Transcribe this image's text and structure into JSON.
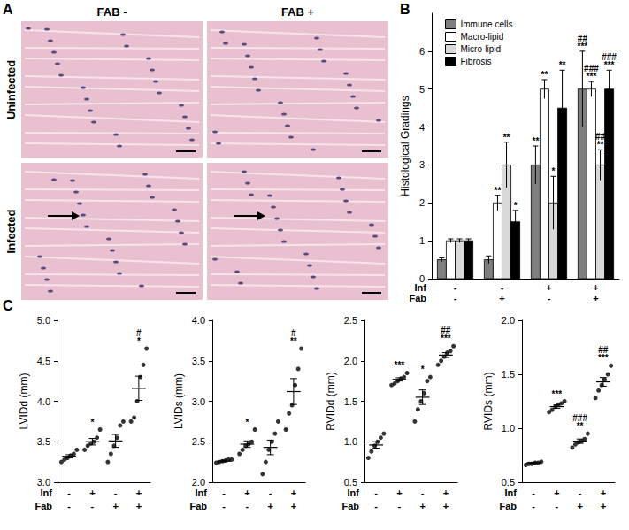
{
  "panel_labels": [
    "A",
    "B",
    "C"
  ],
  "histology": {
    "columns": [
      "FAB -",
      "FAB +"
    ],
    "rows": [
      "Uninfected",
      "Infected"
    ]
  },
  "chart_data": [
    {
      "type": "bar",
      "ylabel": "Histological Gradings",
      "categories": [
        "-\n-",
        "-\n+",
        "+\n-",
        "+\n+"
      ],
      "category_rows": [
        "Inf",
        "Fab"
      ],
      "ylim": [
        0,
        7
      ],
      "yticks": [
        0,
        1,
        2,
        3,
        4,
        5,
        6
      ],
      "legend": "upper left",
      "grid": false,
      "series": [
        {
          "name": "Immune cells",
          "color": "#7f7f7f",
          "values": [
            0.5,
            0.5,
            3,
            5
          ],
          "errors": [
            0.05,
            0.1,
            0.5,
            1.0
          ],
          "annotations": [
            null,
            null,
            "**",
            "##\n***"
          ]
        },
        {
          "name": "Macro-lipid",
          "color": "#ffffff",
          "values": [
            1,
            2,
            5,
            5
          ],
          "errors": [
            0.05,
            0.2,
            0.25,
            0.2
          ],
          "annotations": [
            null,
            "**",
            "**",
            "###\n***"
          ]
        },
        {
          "name": "Micro-lipid",
          "color": "#d9d9d9",
          "values": [
            1,
            3,
            2,
            3
          ],
          "errors": [
            0.05,
            0.6,
            0.7,
            0.4
          ],
          "annotations": [
            null,
            "**",
            "*",
            "##\n**"
          ]
        },
        {
          "name": "Fibrosis",
          "color": "#000000",
          "values": [
            1,
            1.5,
            4.5,
            5
          ],
          "errors": [
            0.05,
            0.3,
            1.0,
            0.5
          ],
          "annotations": [
            null,
            "*",
            "**",
            "###\n***"
          ]
        }
      ]
    },
    {
      "type": "scatter",
      "ylabel": "LVIDd (mm)",
      "categories": [
        "-\n-",
        "+\n-",
        "-\n+",
        "+\n+"
      ],
      "category_rows": [
        "Inf",
        "Fab"
      ],
      "ylim": [
        3,
        5
      ],
      "yticks": [
        {
          "value": 3,
          "label": "3.0"
        },
        3.5,
        {
          "value": 4,
          "label": "4.0"
        },
        4.5,
        {
          "value": 5,
          "label": "5.0"
        }
      ],
      "color": "#000000",
      "marker": "circle",
      "grid": false,
      "values": [
        [
          3.25,
          3.28,
          3.3,
          3.33,
          3.35,
          3.4
        ],
        [
          3.4,
          3.45,
          3.48,
          3.5,
          3.55,
          3.65
        ],
        [
          3.25,
          3.35,
          3.45,
          3.55,
          3.7,
          3.75
        ],
        [
          3.75,
          3.8,
          4.0,
          4.3,
          4.45,
          4.65
        ]
      ],
      "mean": [
        3.32,
        3.5,
        3.51,
        4.16
      ],
      "sem": [
        0.02,
        0.04,
        0.08,
        0.15
      ],
      "annotations": [
        null,
        "*",
        null,
        "#\n*"
      ]
    },
    {
      "type": "scatter",
      "ylabel": "LVIDs (mm)",
      "categories": [
        "-\n-",
        "+\n-",
        "-\n+",
        "+\n+"
      ],
      "category_rows": [
        "Inf",
        "Fab"
      ],
      "ylim": [
        2,
        4
      ],
      "yticks": [
        {
          "value": 2,
          "label": "2.0"
        },
        2.5,
        {
          "value": 3,
          "label": "3.0"
        },
        3.5,
        {
          "value": 4,
          "label": "4.0"
        }
      ],
      "color": "#000000",
      "marker": "circle",
      "grid": false,
      "values": [
        [
          2.24,
          2.25,
          2.26,
          2.27,
          2.28,
          2.28
        ],
        [
          2.35,
          2.4,
          2.45,
          2.47,
          2.5,
          2.65
        ],
        [
          2.1,
          2.25,
          2.4,
          2.5,
          2.6,
          2.75
        ],
        [
          2.65,
          2.85,
          2.95,
          3.2,
          3.4,
          3.65
        ]
      ],
      "mean": [
        2.26,
        2.47,
        2.43,
        3.12
      ],
      "sem": [
        0.01,
        0.04,
        0.09,
        0.16
      ],
      "annotations": [
        null,
        "*",
        null,
        "#\n**"
      ]
    },
    {
      "type": "scatter",
      "ylabel": "RVIDd (mm)",
      "categories": [
        "-\n-",
        "+\n-",
        "-\n+",
        "+\n+"
      ],
      "category_rows": [
        "Inf",
        "Fab"
      ],
      "ylim": [
        0.5,
        2.5
      ],
      "yticks": [
        0.5,
        {
          "value": 1,
          "label": "1.0"
        },
        1.5,
        {
          "value": 2,
          "label": "2.0"
        },
        2.5
      ],
      "color": "#000000",
      "marker": "circle",
      "grid": false,
      "values": [
        [
          0.8,
          0.88,
          0.95,
          1.0,
          1.05,
          1.1
        ],
        [
          1.7,
          1.72,
          1.75,
          1.78,
          1.8,
          1.85
        ],
        [
          1.25,
          1.4,
          1.5,
          1.6,
          1.75,
          1.8
        ],
        [
          1.95,
          2.0,
          2.05,
          2.1,
          2.12,
          2.18
        ]
      ],
      "mean": [
        0.96,
        1.77,
        1.55,
        2.07
      ],
      "sem": [
        0.04,
        0.02,
        0.09,
        0.03
      ],
      "annotations": [
        null,
        "***",
        "*",
        "##\n***"
      ]
    },
    {
      "type": "scatter",
      "ylabel": "RVIDs (mm)",
      "categories": [
        "-\n-",
        "+\n-",
        "-\n+",
        "+\n+"
      ],
      "category_rows": [
        "Inf",
        "Fab"
      ],
      "ylim": [
        0.5,
        2
      ],
      "yticks": [
        0.5,
        {
          "value": 1,
          "label": "1.0"
        },
        1.5,
        {
          "value": 2,
          "label": "2.0"
        }
      ],
      "color": "#000000",
      "marker": "circle",
      "grid": false,
      "values": [
        [
          0.66,
          0.67,
          0.67,
          0.68,
          0.68,
          0.69
        ],
        [
          1.15,
          1.17,
          1.2,
          1.22,
          1.23,
          1.25
        ],
        [
          0.82,
          0.85,
          0.87,
          0.88,
          0.9,
          0.95
        ],
        [
          1.28,
          1.35,
          1.4,
          1.45,
          1.5,
          1.58
        ]
      ],
      "mean": [
        0.68,
        1.2,
        0.88,
        1.43
      ],
      "sem": [
        0.005,
        0.015,
        0.02,
        0.04
      ],
      "annotations": [
        null,
        "***",
        "###\n**",
        "##\n***"
      ]
    }
  ]
}
